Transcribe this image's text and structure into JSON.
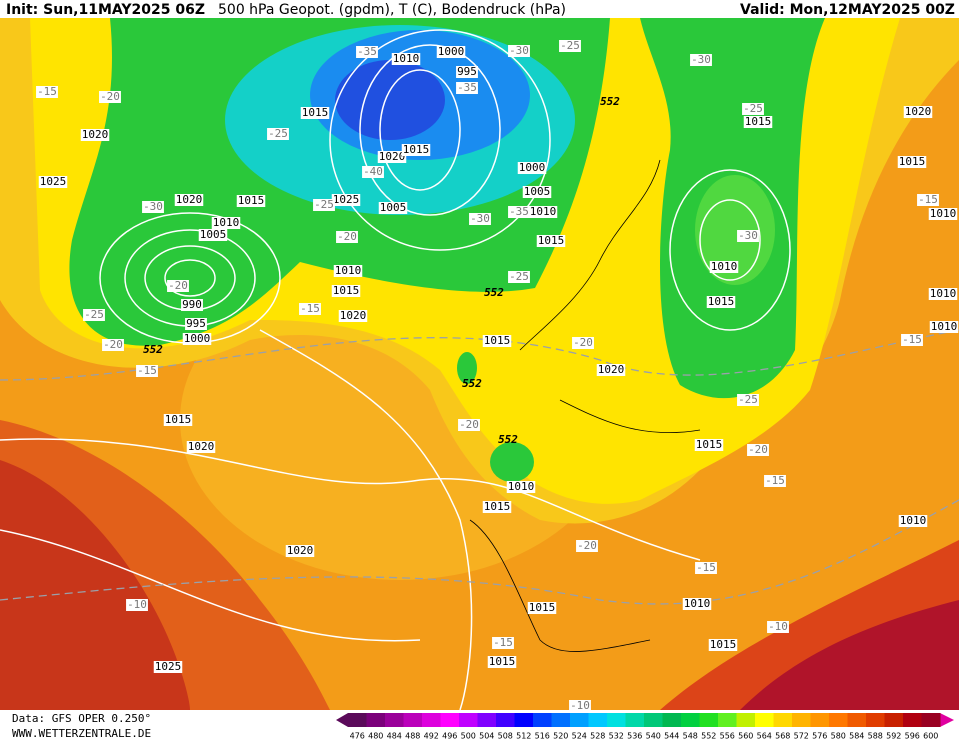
{
  "header": {
    "init": "Init: Sun,11MAY2025 06Z",
    "title": "500 hPa Geopot. (gpdm), T (C), Bodendruck (hPa)",
    "valid": "Valid: Mon,12MAY2025 00Z"
  },
  "footer": {
    "data_source": "Data: GFS OPER 0.250°",
    "website": "WWW.WETTERZENTRALE.DE"
  },
  "colorbar": {
    "labels": [
      476,
      480,
      484,
      488,
      492,
      496,
      500,
      504,
      508,
      512,
      516,
      520,
      524,
      528,
      532,
      536,
      540,
      544,
      548,
      552,
      556,
      560,
      564,
      568,
      572,
      576,
      580,
      584,
      588,
      592,
      596,
      600
    ],
    "colors": [
      "#5a0a5a",
      "#7a007a",
      "#9a009a",
      "#bb00bb",
      "#dd00dd",
      "#ff00ff",
      "#c000ff",
      "#8000ff",
      "#4000ff",
      "#0000ff",
      "#0040ff",
      "#0070ff",
      "#00a0ff",
      "#00c8ff",
      "#00e0e0",
      "#00d8a8",
      "#00c878",
      "#00b850",
      "#00d040",
      "#20e020",
      "#60f020",
      "#c0f000",
      "#ffff00",
      "#ffd800",
      "#ffb400",
      "#ff9600",
      "#ff7800",
      "#f05a00",
      "#e03c00",
      "#c82000",
      "#b00010",
      "#980020"
    ]
  },
  "map_labels": {
    "isobars": [
      1000,
      1010,
      995,
      1015,
      1020,
      1015,
      1025,
      1005,
      1000,
      1005,
      1010,
      1015,
      1020,
      1015,
      1010,
      1005,
      990,
      995,
      1000,
      1020,
      1025,
      1010,
      1015,
      1020,
      1015,
      1020,
      1015,
      1020,
      1010,
      1015,
      1020,
      1025,
      1015,
      1010,
      1015,
      1015,
      1015,
      1010,
      1015,
      1010,
      1015,
      1020,
      1015,
      1010,
      1010,
      1010
    ],
    "temperatures": [
      -35,
      -30,
      -25,
      -30,
      -15,
      -20,
      -25,
      -40,
      -35,
      -30,
      -25,
      -20,
      -30,
      -35,
      -25,
      -20,
      -25,
      -20,
      -15,
      -15,
      -20,
      -20,
      -20,
      -15,
      -15,
      -20,
      -15,
      -10,
      -10,
      -15,
      -25,
      -30,
      -25,
      -15,
      -10
    ],
    "geopotential": [
      552,
      552,
      552,
      552,
      552
    ]
  }
}
